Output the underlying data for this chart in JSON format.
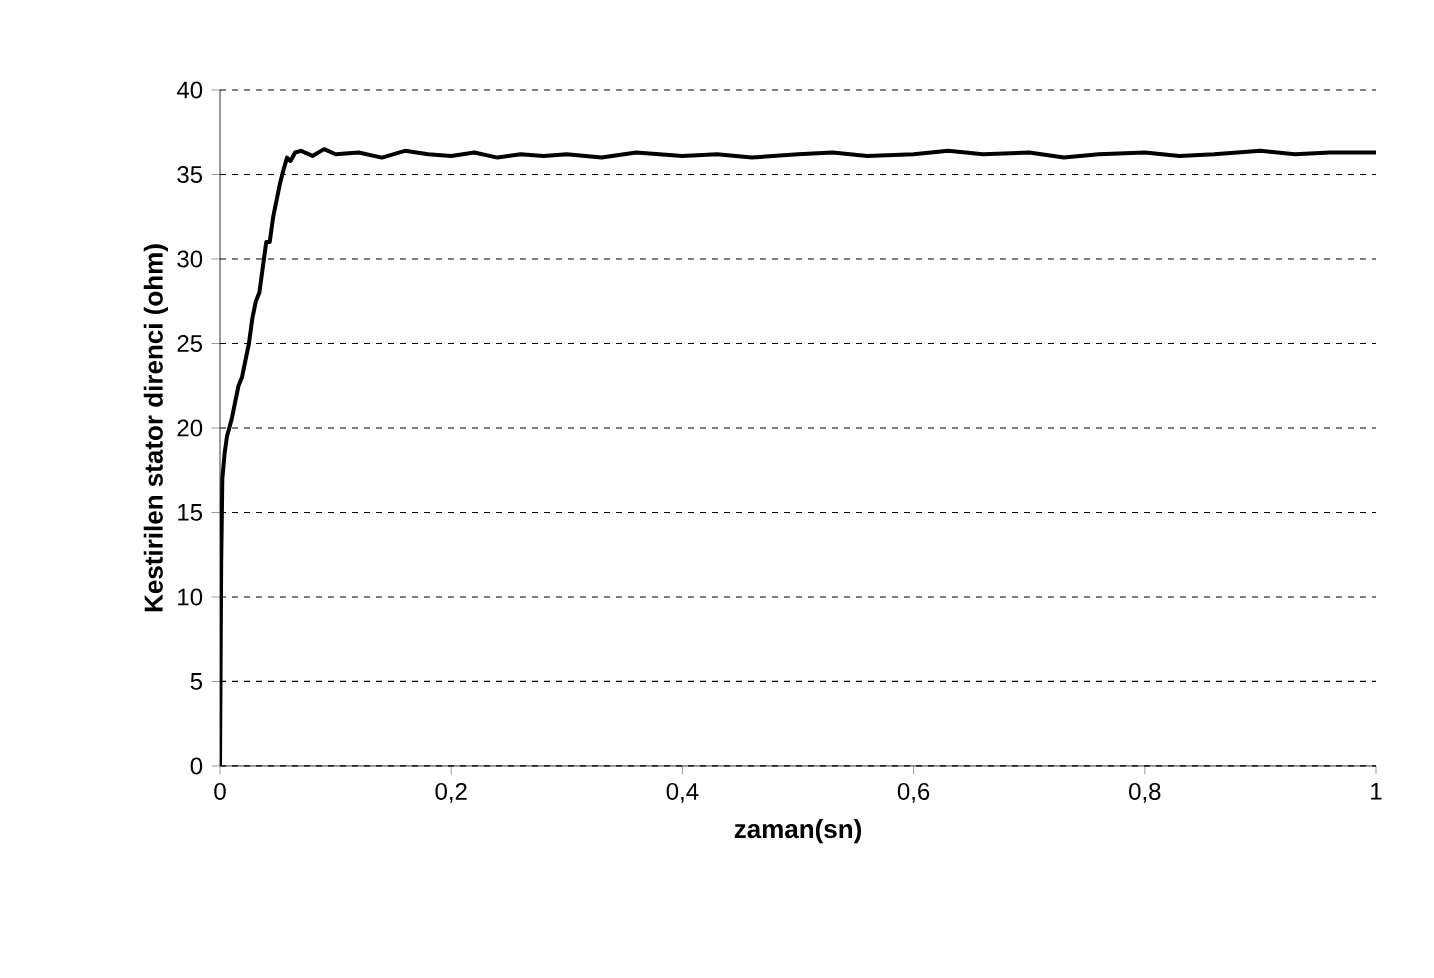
{
  "chart_data": {
    "type": "line",
    "xlabel": "zaman(sn)",
    "ylabel": "Kestirilen stator direnci (ohm)",
    "x": [
      0,
      0.001,
      0.002,
      0.004,
      0.006,
      0.008,
      0.01,
      0.013,
      0.016,
      0.019,
      0.022,
      0.025,
      0.028,
      0.031,
      0.034,
      0.037,
      0.04,
      0.043,
      0.046,
      0.049,
      0.052,
      0.055,
      0.058,
      0.061,
      0.065,
      0.07,
      0.08,
      0.09,
      0.1,
      0.12,
      0.14,
      0.16,
      0.18,
      0.2,
      0.22,
      0.24,
      0.26,
      0.28,
      0.3,
      0.33,
      0.36,
      0.4,
      0.43,
      0.46,
      0.5,
      0.53,
      0.56,
      0.6,
      0.63,
      0.66,
      0.7,
      0.73,
      0.76,
      0.8,
      0.83,
      0.86,
      0.9,
      0.93,
      0.96,
      1.0
    ],
    "values": [
      0,
      12,
      17,
      18.5,
      19.5,
      20,
      20.5,
      21.5,
      22.5,
      23,
      24,
      25,
      26.5,
      27.5,
      28,
      29.5,
      31,
      31,
      32.5,
      33.5,
      34.5,
      35.3,
      36,
      35.8,
      36.3,
      36.4,
      36.1,
      36.5,
      36.2,
      36.3,
      36.0,
      36.4,
      36.2,
      36.1,
      36.3,
      36.0,
      36.2,
      36.1,
      36.2,
      36.0,
      36.3,
      36.1,
      36.2,
      36.0,
      36.2,
      36.3,
      36.1,
      36.2,
      36.4,
      36.2,
      36.3,
      36.0,
      36.2,
      36.3,
      36.1,
      36.2,
      36.4,
      36.2,
      36.3,
      36.3
    ],
    "color": "#000000",
    "xlim": [
      0,
      1
    ],
    "ylim": [
      0,
      40
    ],
    "xticks": [
      0,
      {
        "value": 0.2,
        "label": "0,2"
      },
      {
        "value": 0.4,
        "label": "0,4"
      },
      {
        "value": 0.6,
        "label": "0,6"
      },
      {
        "value": 0.8,
        "label": "0,8"
      },
      1
    ],
    "yticks": [
      0,
      5,
      10,
      15,
      20,
      25,
      30,
      35,
      40
    ],
    "grid": "y",
    "marker": "none",
    "line_style": "solid"
  }
}
